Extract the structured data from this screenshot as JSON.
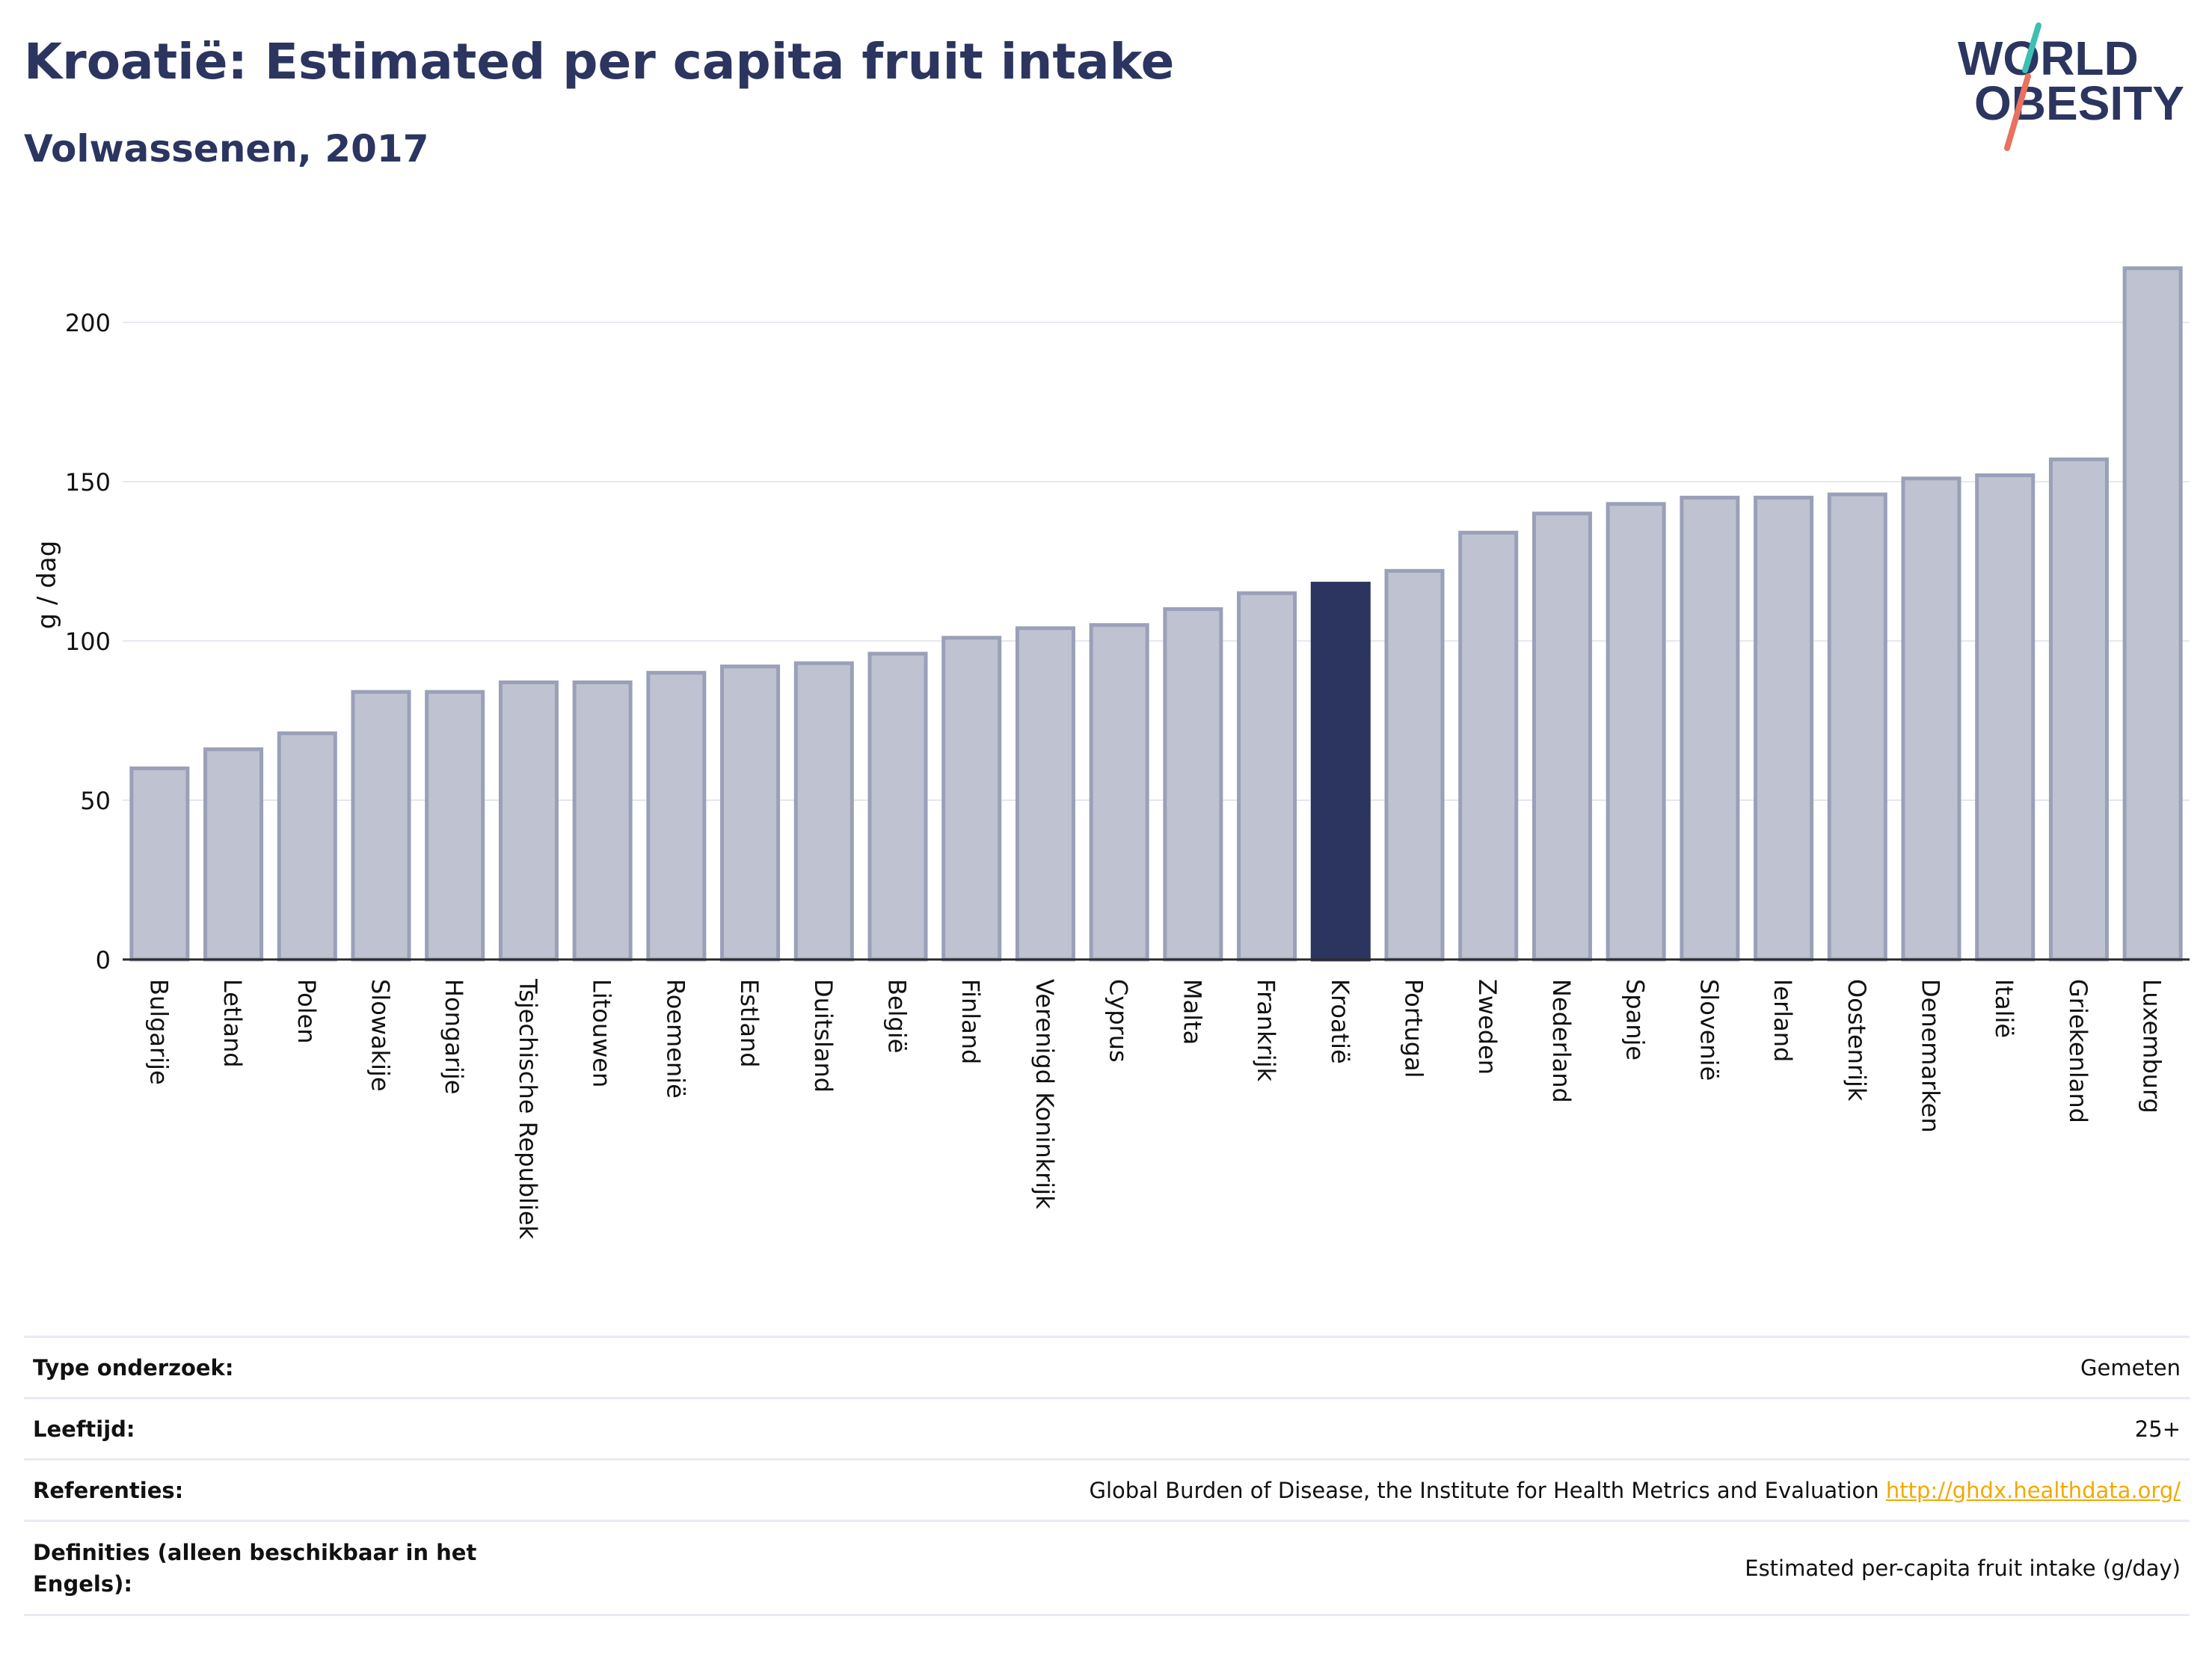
{
  "header": {
    "title": "Kroatië: Estimated per capita fruit intake",
    "subtitle": "Volwassenen, 2017"
  },
  "logo": {
    "line1": "WORLD",
    "line2": "OBESITY"
  },
  "chart_data": {
    "type": "bar",
    "categories": [
      "Bulgarije",
      "Letland",
      "Polen",
      "Slowakije",
      "Hongarije",
      "Tsjechische Republiek",
      "Litouwen",
      "Roemenië",
      "Estland",
      "Duitsland",
      "België",
      "Finland",
      "Verenigd Koninkrijk",
      "Cyprus",
      "Malta",
      "Frankrijk",
      "Kroatië",
      "Portugal",
      "Zweden",
      "Nederland",
      "Spanje",
      "Slovenië",
      "Ierland",
      "Oostenrijk",
      "Denemarken",
      "Italië",
      "Griekenland",
      "Luxemburg"
    ],
    "values": [
      60,
      66,
      71,
      84,
      84,
      87,
      87,
      90,
      92,
      93,
      96,
      101,
      104,
      105,
      110,
      115,
      118,
      122,
      134,
      140,
      143,
      145,
      145,
      146,
      151,
      152,
      157,
      217
    ],
    "highlight": "Kroatië",
    "ylabel": "g / dag",
    "ylim": [
      0,
      235
    ],
    "yticks": [
      0,
      50,
      100,
      150,
      200
    ],
    "grid": true,
    "colors": {
      "bar": "#bfc3d1",
      "bar_edge": "#9aa0b8",
      "highlight": "#2b355f"
    }
  },
  "info": {
    "rows": [
      {
        "label": "Type onderzoek:",
        "value": "Gemeten"
      },
      {
        "label": "Leeftijd:",
        "value": "25+"
      },
      {
        "label": "Referenties:",
        "value": "Global Burden of Disease, the Institute for Health Metrics and Evaluation",
        "link": "http://ghdx.healthdata.org/"
      },
      {
        "label": "Definities (alleen beschikbaar in het Engels):",
        "value": "Estimated per-capita fruit intake (g/day)"
      }
    ]
  }
}
